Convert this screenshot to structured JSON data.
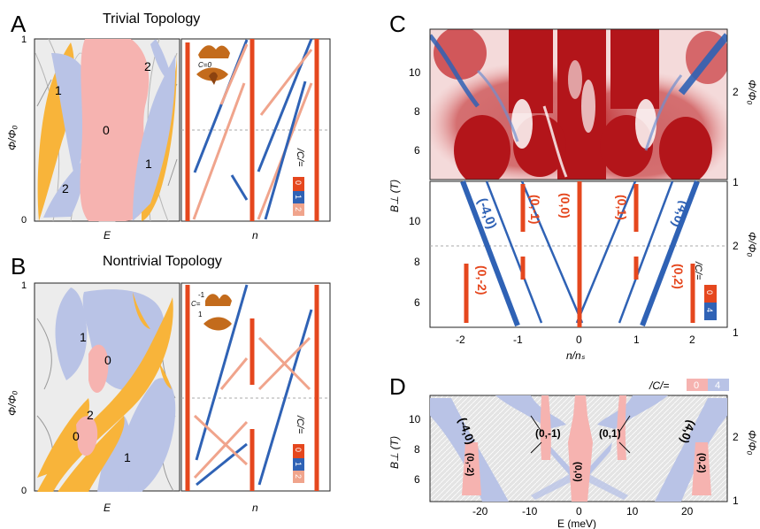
{
  "panels": {
    "A": {
      "letter": "A",
      "title": "Trivial Topology",
      "y_label": "Φ/Φ₀",
      "y_ticks": [
        "1",
        "0"
      ],
      "x_left": "E",
      "x_right": "n",
      "regions": [
        "1",
        "2",
        "0",
        "2",
        "1"
      ],
      "chern_inset": "C=0",
      "legend_label": "/C/=",
      "legend_items": [
        "0",
        "1",
        "2"
      ]
    },
    "B": {
      "letter": "B",
      "title": "Nontrivial Topology",
      "y_label": "Φ/Φ₀",
      "y_ticks": [
        "1",
        "0"
      ],
      "x_left": "E",
      "x_right": "n",
      "regions": [
        "1",
        "0",
        "2",
        "0",
        "1"
      ],
      "chern_inset_top": "-1",
      "chern_inset_c": "C=",
      "chern_inset_bottom": "1",
      "legend_label": "/C/=",
      "legend_items": [
        "0",
        "1",
        "2"
      ]
    },
    "C": {
      "letter": "C",
      "y_label": "B⊥ (T)",
      "y_ticks": [
        "10",
        "8",
        "6"
      ],
      "right_label": "Φ/Φ₀",
      "right_ticks": [
        "2",
        "1"
      ],
      "x_label": "n/nₛ",
      "x_ticks": [
        "-2",
        "-1",
        "0",
        "1",
        "2"
      ],
      "fan_labels": [
        "(-4,0)",
        "(0,-1)",
        "(0,0)",
        "(0,1)",
        "(4,0)",
        "(0,-2)",
        "(0,2)"
      ],
      "legend_label": "/C/=",
      "legend_items": [
        "0",
        "4"
      ]
    },
    "D": {
      "letter": "D",
      "y_label": "B⊥ (T)",
      "y_ticks": [
        "10",
        "8",
        "6"
      ],
      "right_label": "Φ/Φ₀",
      "right_ticks": [
        "2",
        "1"
      ],
      "x_label": "E (meV)",
      "x_ticks": [
        "-20",
        "-10",
        "0",
        "10",
        "20"
      ],
      "labels": [
        "(-4,0)",
        "(0,-1)",
        "(0,1)",
        "(4,0)",
        "(0,-2)",
        "(0,0)",
        "(0,2)"
      ],
      "legend_label": "/C/=",
      "legend_items": [
        "0",
        "4"
      ]
    }
  },
  "colors": {
    "pink": "#f6b3b0",
    "lavender": "#b9c3e6",
    "orange": "#f8b43a",
    "red": "#e5471e",
    "blue": "#2f62b5",
    "salmon": "#f0a48c",
    "darkred": "#b3151a"
  }
}
